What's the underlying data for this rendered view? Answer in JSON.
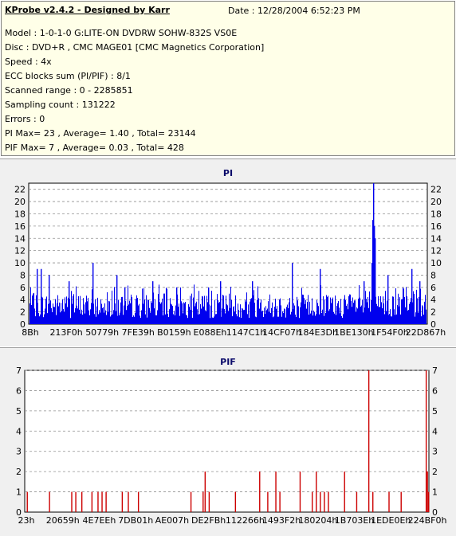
{
  "header": {
    "title": "KProbe v2.4.2 - Designed by Karr",
    "date": "Date :  12/28/2004 6:52:23 PM",
    "lines": [
      "Model : 1-0-1-0 G:LITE-ON DVDRW SOHW-832S  VS0E",
      "Disc : DVD+R , CMC MAGE01 [CMC Magnetics Corporation]",
      "Speed : 4x",
      "ECC blocks sum (PI/PIF) : 8/1",
      "Scanned range : 0 - 2285851",
      "Sampling count : 131222",
      "Errors : 0",
      "PI Max= 23 , Average= 1.40 , Total= 23144",
      "PIF Max= 7 , Average= 0.03 , Total= 428"
    ]
  },
  "colors": {
    "pi": "#0000ee",
    "pif": "#cc0000",
    "info_bg": "#ffffe8",
    "plot_bg": "#ffffff"
  },
  "chart_data": [
    {
      "type": "bar",
      "title": "PI",
      "ylim": [
        0,
        23
      ],
      "yticks": [
        0,
        2,
        4,
        6,
        8,
        10,
        12,
        14,
        16,
        18,
        20,
        22
      ],
      "xtick_labels": [
        "8Bh",
        "213F0h",
        "50779h",
        "7FE39h",
        "B0159h",
        "E088Eh",
        "1147C1h",
        "14CF07h",
        "184E3Dh",
        "1BE130h",
        "1F54F0h",
        "22D867h"
      ],
      "grid": true,
      "baseline_range": [
        1,
        5
      ],
      "spikes": [
        {
          "x": 0.02,
          "value": 9
        },
        {
          "x": 0.03,
          "value": 9
        },
        {
          "x": 0.05,
          "value": 8
        },
        {
          "x": 0.1,
          "value": 7
        },
        {
          "x": 0.16,
          "value": 10
        },
        {
          "x": 0.22,
          "value": 8
        },
        {
          "x": 0.24,
          "value": 6
        },
        {
          "x": 0.31,
          "value": 7
        },
        {
          "x": 0.37,
          "value": 6
        },
        {
          "x": 0.45,
          "value": 6
        },
        {
          "x": 0.48,
          "value": 7
        },
        {
          "x": 0.56,
          "value": 7
        },
        {
          "x": 0.66,
          "value": 10
        },
        {
          "x": 0.73,
          "value": 9
        },
        {
          "x": 0.84,
          "value": 7
        },
        {
          "x": 0.86,
          "value": 10
        },
        {
          "x": 0.862,
          "value": 17
        },
        {
          "x": 0.864,
          "value": 23
        },
        {
          "x": 0.866,
          "value": 16
        },
        {
          "x": 0.868,
          "value": 14
        },
        {
          "x": 0.9,
          "value": 8
        },
        {
          "x": 0.96,
          "value": 9
        },
        {
          "x": 0.98,
          "value": 7
        }
      ]
    },
    {
      "type": "bar",
      "title": "PIF",
      "ylim": [
        0,
        7
      ],
      "yticks": [
        0,
        1,
        2,
        3,
        4,
        5,
        6,
        7
      ],
      "xtick_labels": [
        "23h",
        "20659h",
        "4E7EEh",
        "7DB01h",
        "AE007h",
        "DE2FBh",
        "112266h",
        "1493F2h",
        "180204h",
        "1B703Eh",
        "1EDE0Eh",
        "224BF0h"
      ],
      "grid": true,
      "spikes": [
        {
          "x": 0.005,
          "value": 1
        },
        {
          "x": 0.06,
          "value": 1
        },
        {
          "x": 0.115,
          "value": 1
        },
        {
          "x": 0.125,
          "value": 1
        },
        {
          "x": 0.14,
          "value": 1
        },
        {
          "x": 0.165,
          "value": 1
        },
        {
          "x": 0.18,
          "value": 1
        },
        {
          "x": 0.19,
          "value": 1
        },
        {
          "x": 0.2,
          "value": 1
        },
        {
          "x": 0.24,
          "value": 1
        },
        {
          "x": 0.255,
          "value": 1
        },
        {
          "x": 0.28,
          "value": 1
        },
        {
          "x": 0.41,
          "value": 1
        },
        {
          "x": 0.44,
          "value": 1
        },
        {
          "x": 0.445,
          "value": 2
        },
        {
          "x": 0.455,
          "value": 1
        },
        {
          "x": 0.52,
          "value": 1
        },
        {
          "x": 0.58,
          "value": 2
        },
        {
          "x": 0.6,
          "value": 1
        },
        {
          "x": 0.62,
          "value": 2
        },
        {
          "x": 0.63,
          "value": 1
        },
        {
          "x": 0.68,
          "value": 2
        },
        {
          "x": 0.71,
          "value": 1
        },
        {
          "x": 0.72,
          "value": 2
        },
        {
          "x": 0.73,
          "value": 1
        },
        {
          "x": 0.74,
          "value": 1
        },
        {
          "x": 0.75,
          "value": 1
        },
        {
          "x": 0.79,
          "value": 2
        },
        {
          "x": 0.82,
          "value": 1
        },
        {
          "x": 0.85,
          "value": 7
        },
        {
          "x": 0.86,
          "value": 1
        },
        {
          "x": 0.9,
          "value": 1
        },
        {
          "x": 0.93,
          "value": 1
        },
        {
          "x": 0.992,
          "value": 7
        },
        {
          "x": 0.995,
          "value": 2
        },
        {
          "x": 0.998,
          "value": 1
        }
      ]
    }
  ]
}
